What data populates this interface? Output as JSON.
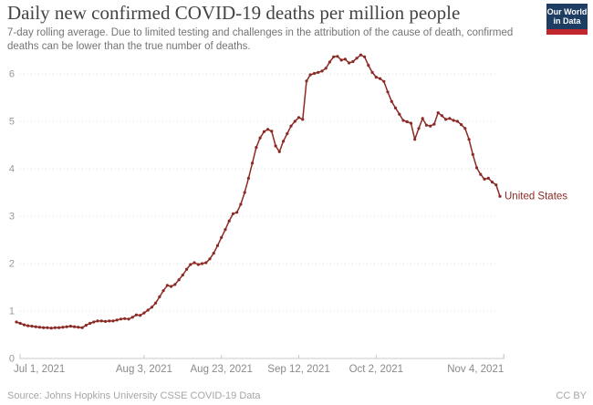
{
  "header": {
    "title": "Daily new confirmed COVID-19 deaths per million people",
    "subtitle": "7-day rolling average. Due to limited testing and challenges in the attribution of the cause of death, confirmed deaths can be lower than the true number of deaths.",
    "logo": {
      "line1": "Our World",
      "line2": "in Data",
      "bg_color": "#1d3d63",
      "bar_color": "#c1272d"
    }
  },
  "footer": {
    "source": "Source: Johns Hopkins University CSSE COVID-19 Data",
    "license": "CC BY"
  },
  "chart_data": {
    "type": "line",
    "title": "Daily new confirmed COVID-19 deaths per million people",
    "xlabel": "",
    "ylabel": "",
    "grid": "dotted-horizontal",
    "legend_position": "end-of-line",
    "ylim": [
      0,
      6.6
    ],
    "y_ticks": [
      0,
      1,
      2,
      3,
      4,
      5,
      6
    ],
    "x_axis": {
      "range_days": [
        0,
        126
      ],
      "ticks": [
        {
          "label": "Jul 1, 2021",
          "day": 0
        },
        {
          "label": "Aug 3, 2021",
          "day": 33
        },
        {
          "label": "Aug 23, 2021",
          "day": 53
        },
        {
          "label": "Sep 12, 2021",
          "day": 73
        },
        {
          "label": "Oct 2, 2021",
          "day": 93
        },
        {
          "label": "Nov 4, 2021",
          "day": 126
        }
      ]
    },
    "series": [
      {
        "name": "United States",
        "color": "#8b2a25",
        "cadence": "daily",
        "start_label": "Jul 1, 2021",
        "end_label_text": "United States",
        "values": [
          0.77,
          0.74,
          0.71,
          0.69,
          0.68,
          0.67,
          0.66,
          0.65,
          0.65,
          0.64,
          0.65,
          0.65,
          0.66,
          0.67,
          0.68,
          0.67,
          0.66,
          0.65,
          0.7,
          0.74,
          0.77,
          0.79,
          0.79,
          0.78,
          0.79,
          0.79,
          0.81,
          0.83,
          0.84,
          0.83,
          0.87,
          0.92,
          0.91,
          0.96,
          1.02,
          1.08,
          1.17,
          1.3,
          1.43,
          1.54,
          1.52,
          1.56,
          1.66,
          1.76,
          1.88,
          1.98,
          2.02,
          1.98,
          2.0,
          2.02,
          2.1,
          2.22,
          2.38,
          2.55,
          2.72,
          2.9,
          3.05,
          3.08,
          3.25,
          3.5,
          3.8,
          4.12,
          4.45,
          4.65,
          4.78,
          4.83,
          4.79,
          4.48,
          4.36,
          4.58,
          4.74,
          4.9,
          5.0,
          5.08,
          5.04,
          5.85,
          5.98,
          6.01,
          6.03,
          6.06,
          6.12,
          6.25,
          6.36,
          6.37,
          6.29,
          6.31,
          6.23,
          6.26,
          6.33,
          6.4,
          6.36,
          6.18,
          6.03,
          5.93,
          5.9,
          5.84,
          5.62,
          5.42,
          5.28,
          5.15,
          5.02,
          4.99,
          4.96,
          4.62,
          4.85,
          5.06,
          4.92,
          4.9,
          4.94,
          5.18,
          5.12,
          5.04,
          5.06,
          5.02,
          5.0,
          4.93,
          4.85,
          4.62,
          4.3,
          4.02,
          3.88,
          3.78,
          3.8,
          3.72,
          3.66,
          3.42
        ]
      }
    ]
  }
}
